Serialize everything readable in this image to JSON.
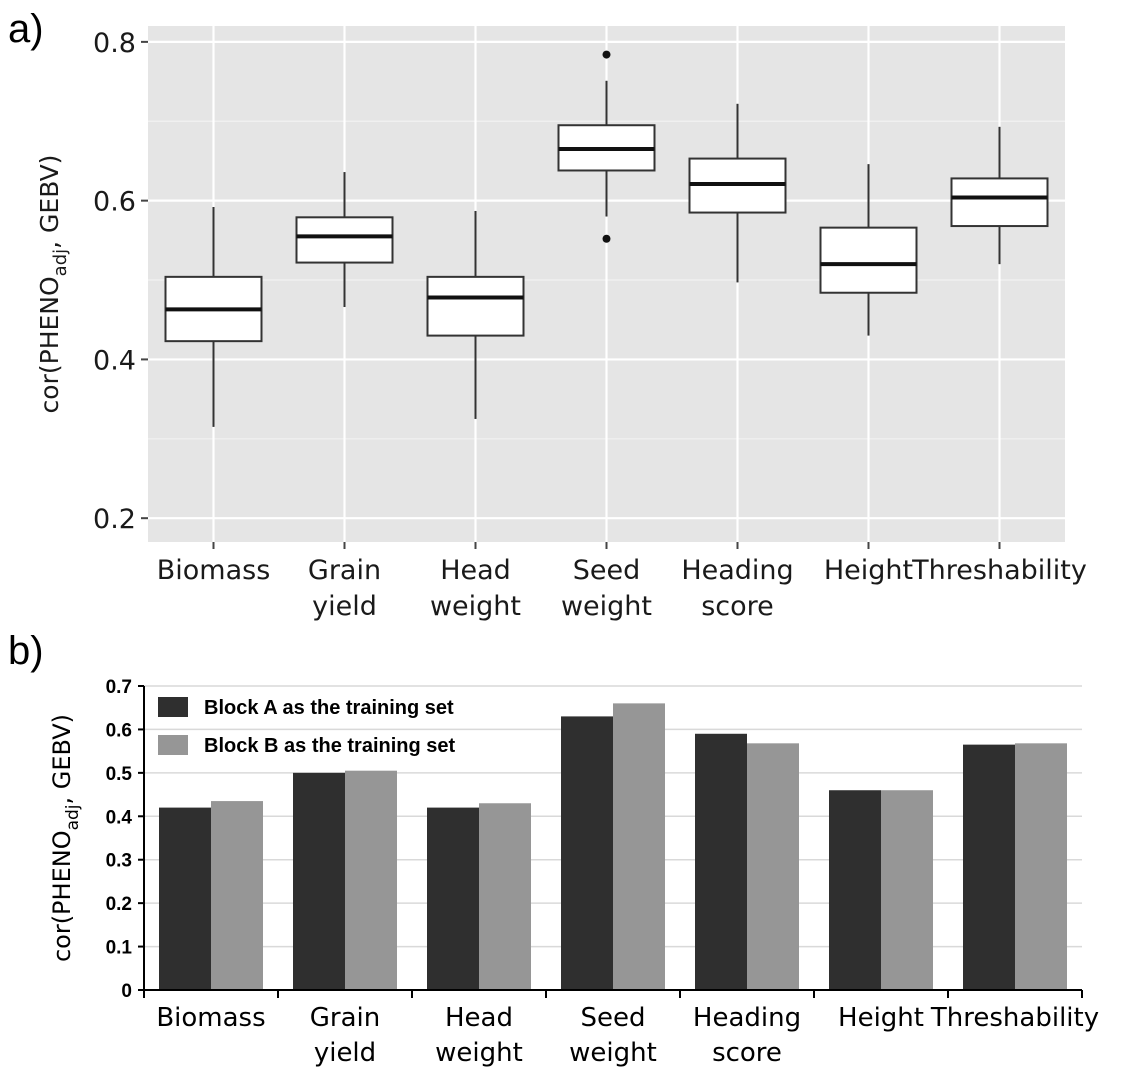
{
  "chart_data": [
    {
      "panel_label": "a)",
      "type": "box",
      "ylabel": "cor(PHENO_adj, GEBV)",
      "ylabel_main": "cor(PHENO",
      "ylabel_sub": "adj",
      "ylabel_tail": ", GEBV)",
      "ylim": [
        0.17,
        0.82
      ],
      "yticks": [
        0.2,
        0.4,
        0.6,
        0.8
      ],
      "ytick_labels": [
        "0.2",
        "0.4",
        "0.6",
        "0.8"
      ],
      "grid": true,
      "background": "#e5e5e5",
      "categories": [
        [
          "Biomass"
        ],
        [
          "Grain",
          "yield"
        ],
        [
          "Head",
          "weight"
        ],
        [
          "Seed",
          "weight"
        ],
        [
          "Heading",
          "score"
        ],
        [
          "Height"
        ],
        [
          "Threshability"
        ]
      ],
      "boxes": [
        {
          "min": 0.315,
          "q1": 0.423,
          "median": 0.463,
          "q3": 0.504,
          "max": 0.592,
          "outliers": []
        },
        {
          "min": 0.466,
          "q1": 0.522,
          "median": 0.555,
          "q3": 0.579,
          "max": 0.636,
          "outliers": []
        },
        {
          "min": 0.325,
          "q1": 0.43,
          "median": 0.478,
          "q3": 0.504,
          "max": 0.587,
          "outliers": []
        },
        {
          "min": 0.58,
          "q1": 0.638,
          "median": 0.665,
          "q3": 0.695,
          "max": 0.751,
          "outliers": [
            0.784,
            0.552
          ]
        },
        {
          "min": 0.497,
          "q1": 0.585,
          "median": 0.621,
          "q3": 0.653,
          "max": 0.722,
          "outliers": []
        },
        {
          "min": 0.43,
          "q1": 0.484,
          "median": 0.52,
          "q3": 0.566,
          "max": 0.646,
          "outliers": []
        },
        {
          "min": 0.52,
          "q1": 0.568,
          "median": 0.604,
          "q3": 0.628,
          "max": 0.693,
          "outliers": []
        }
      ]
    },
    {
      "panel_label": "b)",
      "type": "bar",
      "ylabel": "cor(PHENO_adj, GEBV)",
      "ylabel_main": "cor(PHENO",
      "ylabel_sub": "adj",
      "ylabel_tail": ", GEBV)",
      "ylim": [
        0,
        0.7
      ],
      "yticks": [
        0,
        0.1,
        0.2,
        0.3,
        0.4,
        0.5,
        0.6,
        0.7
      ],
      "ytick_labels": [
        "0",
        "0.1",
        "0.2",
        "0.3",
        "0.4",
        "0.5",
        "0.6",
        "0.7"
      ],
      "grid": true,
      "legend_position": "top-left",
      "categories": [
        [
          "Biomass"
        ],
        [
          "Grain",
          "yield"
        ],
        [
          "Head",
          "weight"
        ],
        [
          "Seed",
          "weight"
        ],
        [
          "Heading",
          "score"
        ],
        [
          "Height"
        ],
        [
          "Threshability"
        ]
      ],
      "series": [
        {
          "name": "Block A as the training set",
          "color": "#2f2f2f",
          "values": [
            0.42,
            0.5,
            0.42,
            0.63,
            0.59,
            0.46,
            0.565
          ]
        },
        {
          "name": "Block B as the training set",
          "color": "#969696",
          "values": [
            0.435,
            0.505,
            0.43,
            0.66,
            0.568,
            0.46,
            0.568
          ]
        }
      ]
    }
  ]
}
